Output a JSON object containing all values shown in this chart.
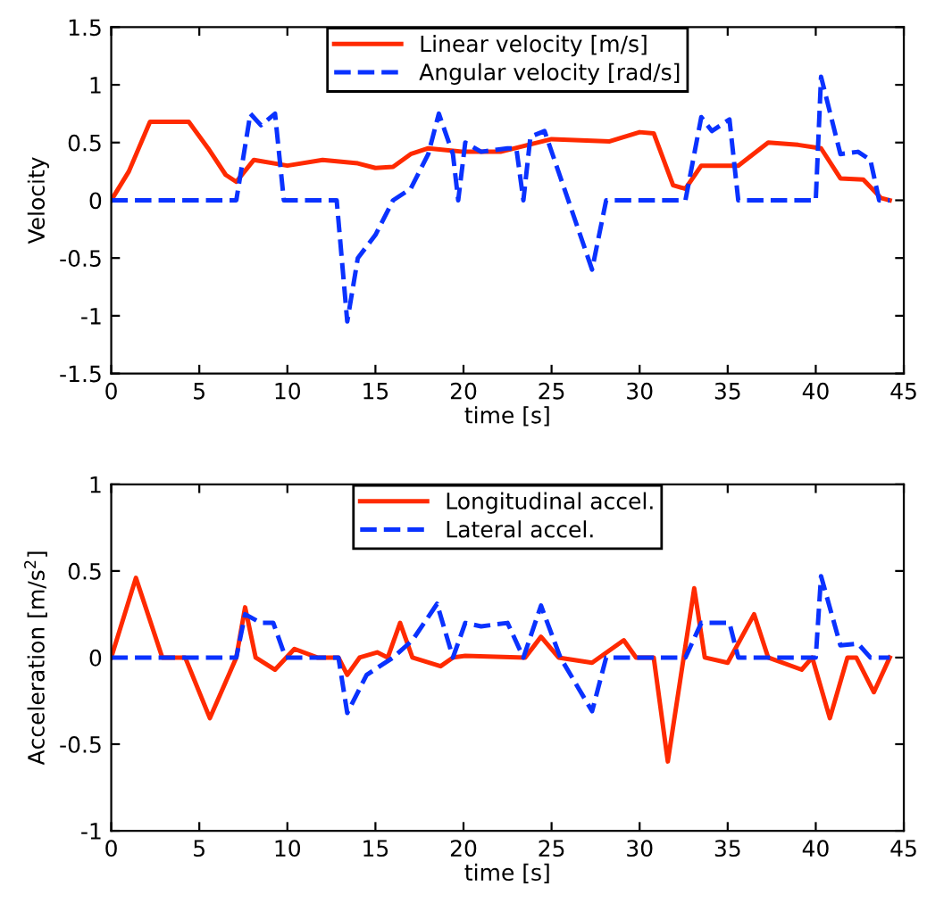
{
  "chart_data": [
    {
      "type": "line",
      "xlabel": "time [s]",
      "ylabel": "Velocity",
      "xlim": [
        0,
        45
      ],
      "xticks": [
        0,
        5,
        10,
        15,
        20,
        25,
        30,
        35,
        40,
        45
      ],
      "ylim": [
        -1.5,
        1.5
      ],
      "yticks": [
        {
          "value": -1.5,
          "label": "-1.5"
        },
        {
          "value": -1,
          "label": "-1"
        },
        {
          "value": -0.5,
          "label": "-0.5"
        },
        0,
        0.5,
        1,
        1.5
      ],
      "legend": "top",
      "grid": false,
      "series": [
        {
          "name": "Linear velocity [m/s]",
          "color": "#ff2a00",
          "line_style": "solid",
          "x": [
            0,
            1,
            2.2,
            4.4,
            5.5,
            6.5,
            7.1,
            8.1,
            10,
            12,
            14,
            15,
            16,
            17,
            18,
            20,
            22.1,
            25,
            28.3,
            30,
            30.8,
            31.9,
            32.6,
            33.5,
            35.6,
            37.3,
            39,
            40.3,
            41.4,
            42.7,
            43.7,
            44.2
          ],
          "values": [
            0,
            0.25,
            0.68,
            0.68,
            0.45,
            0.22,
            0.16,
            0.35,
            0.3,
            0.35,
            0.32,
            0.28,
            0.29,
            0.4,
            0.45,
            0.42,
            0.42,
            0.53,
            0.51,
            0.59,
            0.58,
            0.13,
            0.1,
            0.3,
            0.3,
            0.5,
            0.48,
            0.45,
            0.19,
            0.18,
            0.02,
            0
          ]
        },
        {
          "name": "Angular velocity [rad/s]",
          "color": "#0a32ff",
          "line_style": "dashed",
          "x": [
            0,
            7.1,
            7.9,
            8.5,
            9.3,
            9.8,
            12.8,
            13.4,
            14,
            15,
            16,
            17,
            18,
            18.6,
            19.4,
            19.7,
            20.1,
            21,
            22.5,
            23,
            23.4,
            23.8,
            24.6,
            27.3,
            28.1,
            32.6,
            33.5,
            34.1,
            35.1,
            35.6,
            40,
            40.3,
            41.4,
            42.4,
            43.1,
            43.6,
            44.2
          ],
          "values": [
            0,
            0,
            0.75,
            0.65,
            0.75,
            0,
            0,
            -1.05,
            -0.5,
            -0.3,
            0,
            0.1,
            0.4,
            0.75,
            0.4,
            0,
            0.5,
            0.42,
            0.45,
            0.45,
            0,
            0.55,
            0.6,
            -0.6,
            0,
            0,
            0.72,
            0.6,
            0.7,
            0,
            0,
            1.07,
            0.4,
            0.42,
            0.35,
            0,
            0
          ]
        }
      ]
    },
    {
      "type": "line",
      "xlabel": "time [s]",
      "ylabel": "Acceleration [m/s$^{2}$]",
      "xlim": [
        0,
        45
      ],
      "xticks": [
        0,
        5,
        10,
        15,
        20,
        25,
        30,
        35,
        40,
        45
      ],
      "ylim": [
        -1,
        1
      ],
      "yticks": [
        {
          "value": -1,
          "label": "-1"
        },
        {
          "value": -0.5,
          "label": "-0.5"
        },
        0,
        0.5,
        1
      ],
      "legend": "top",
      "grid": false,
      "series": [
        {
          "name": "Longitudinal accel.",
          "color": "#ff2a00",
          "line_style": "solid",
          "x": [
            0,
            1.4,
            2.9,
            4.2,
            5.6,
            7.1,
            7.6,
            8.2,
            9.3,
            10.4,
            11.7,
            12.9,
            13.4,
            14.1,
            15.1,
            15.7,
            16.4,
            17.1,
            18.7,
            19.4,
            20.1,
            23.5,
            24.4,
            25.4,
            27.3,
            29.1,
            29.8,
            30.8,
            31.6,
            33.1,
            33.7,
            35,
            36.5,
            37.3,
            39.2,
            39.8,
            40.8,
            41.8,
            42.3,
            43.3,
            44.2
          ],
          "values": [
            0,
            0.46,
            0,
            0,
            -0.35,
            0,
            0.29,
            0,
            -0.07,
            0.05,
            0,
            0,
            -0.1,
            0,
            0.03,
            0,
            0.2,
            0,
            -0.05,
            0,
            0.01,
            0,
            0.12,
            0,
            -0.03,
            0.1,
            0,
            0,
            -0.6,
            0.4,
            0,
            -0.03,
            0.25,
            0,
            -0.07,
            0,
            -0.35,
            0,
            0,
            -0.2,
            0
          ]
        },
        {
          "name": "Lateral accel.",
          "color": "#0a32ff",
          "line_style": "dashed",
          "x": [
            0,
            7.1,
            7.6,
            8.5,
            9.2,
            9.9,
            12.9,
            13.4,
            14.5,
            16,
            17.1,
            18.5,
            19.4,
            20.1,
            21,
            22.5,
            23.4,
            24.4,
            25.5,
            27.3,
            28.1,
            32.6,
            33.5,
            34.1,
            35.1,
            35.6,
            40,
            40.3,
            41.4,
            42.4,
            43.1,
            44.2
          ],
          "values": [
            0,
            0,
            0.25,
            0.2,
            0.2,
            0,
            0,
            -0.32,
            -0.1,
            0,
            0.1,
            0.31,
            0,
            0.2,
            0.18,
            0.2,
            0,
            0.3,
            0,
            -0.31,
            0,
            0,
            0.2,
            0.2,
            0.2,
            0,
            0,
            0.47,
            0.07,
            0.08,
            0,
            0
          ]
        }
      ]
    }
  ]
}
